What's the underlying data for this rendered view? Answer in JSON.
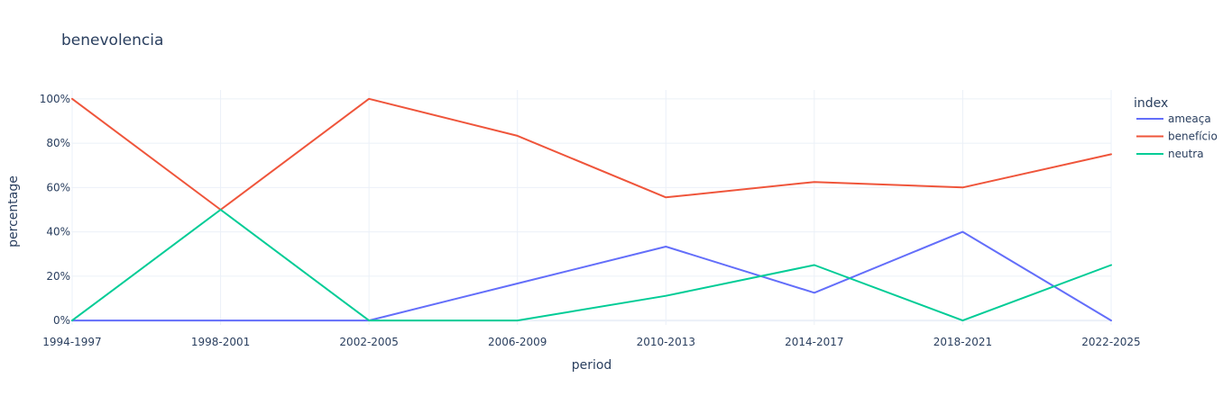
{
  "chart_data": {
    "type": "line",
    "title": "benevolencia",
    "xlabel": "period",
    "ylabel": "percentage",
    "categories": [
      "1994-1997",
      "1998-2001",
      "2002-2005",
      "2006-2009",
      "2010-2013",
      "2014-2017",
      "2018-2021",
      "2022-2025"
    ],
    "ylim": [
      -0.02,
      1.04
    ],
    "yticks": [
      0,
      0.2,
      0.4,
      0.6,
      0.8,
      1.0
    ],
    "ytick_labels": [
      "0%",
      "20%",
      "40%",
      "60%",
      "80%",
      "100%"
    ],
    "grid": true,
    "legend": {
      "title": "index",
      "placement": "top-right"
    },
    "series": [
      {
        "name": "ameaça",
        "color": "#636efa",
        "values": [
          0,
          0,
          0,
          0.1667,
          0.3333,
          0.125,
          0.4,
          0
        ]
      },
      {
        "name": "benefício",
        "color": "#ef553b",
        "values": [
          1.0,
          0.5,
          1.0,
          0.8333,
          0.5556,
          0.625,
          0.6,
          0.75
        ]
      },
      {
        "name": "neutra",
        "color": "#00cc96",
        "values": [
          0,
          0.5,
          0,
          0,
          0.1111,
          0.25,
          0,
          0.25
        ]
      }
    ]
  }
}
